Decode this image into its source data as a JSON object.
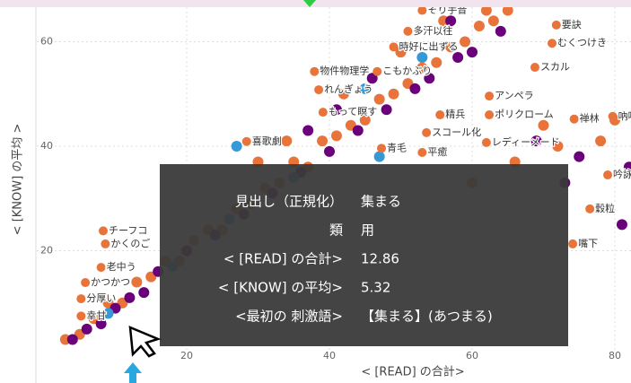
{
  "chart": {
    "type": "scatter",
    "x_label": "< [READ] の合計>",
    "y_label": "< [KNOW] の平均 >",
    "xlim": [
      0,
      82
    ],
    "ylim": [
      0,
      68
    ],
    "xticks": [
      20,
      40,
      60,
      80
    ],
    "yticks": [
      20,
      40,
      60
    ],
    "grid": true,
    "series": [
      {
        "color": "#e8743b",
        "points": [
          [
            3,
            3
          ],
          [
            5,
            4
          ],
          [
            7,
            7
          ],
          [
            9,
            10
          ],
          [
            11,
            10
          ],
          [
            13,
            14
          ],
          [
            15,
            15
          ],
          [
            17,
            18
          ],
          [
            19,
            18
          ],
          [
            21,
            22
          ],
          [
            23,
            24
          ],
          [
            25,
            24
          ],
          [
            27,
            28
          ],
          [
            29,
            29
          ],
          [
            31,
            32
          ],
          [
            33,
            33
          ],
          [
            35,
            37
          ],
          [
            37,
            36
          ],
          [
            39,
            41
          ],
          [
            41,
            42
          ],
          [
            43,
            44
          ],
          [
            45,
            45
          ],
          [
            47,
            49
          ],
          [
            49,
            50
          ],
          [
            51,
            52
          ],
          [
            53,
            55
          ],
          [
            55,
            56
          ],
          [
            57,
            59
          ],
          [
            59,
            60
          ],
          [
            61,
            63
          ],
          [
            63,
            64
          ],
          [
            65,
            66
          ],
          [
            30,
            37
          ],
          [
            34,
            41
          ],
          [
            42,
            50
          ],
          [
            50,
            58
          ],
          [
            56,
            64
          ],
          [
            70,
            44
          ],
          [
            72,
            40
          ],
          [
            78,
            41
          ],
          [
            66,
            37
          ],
          [
            60,
            33
          ],
          [
            80,
            45
          ],
          [
            62,
            66
          ]
        ]
      },
      {
        "color": "#6b007b",
        "points": [
          [
            4,
            3
          ],
          [
            6,
            5
          ],
          [
            8,
            6
          ],
          [
            10,
            9
          ],
          [
            12,
            11
          ],
          [
            14,
            12
          ],
          [
            16,
            16
          ],
          [
            20,
            20
          ],
          [
            24,
            23
          ],
          [
            28,
            27
          ],
          [
            32,
            31
          ],
          [
            36,
            35
          ],
          [
            40,
            39
          ],
          [
            44,
            43
          ],
          [
            48,
            47
          ],
          [
            52,
            51
          ],
          [
            54,
            53
          ],
          [
            58,
            57
          ],
          [
            60,
            58
          ],
          [
            64,
            62
          ],
          [
            37,
            43
          ],
          [
            41,
            47
          ],
          [
            46,
            53
          ],
          [
            57,
            64
          ],
          [
            69,
            41
          ],
          [
            75,
            38
          ],
          [
            81,
            25
          ],
          [
            82,
            36
          ],
          [
            73,
            33
          ]
        ]
      },
      {
        "color": "#3599d6",
        "points": [
          [
            9,
            8
          ],
          [
            18,
            17
          ],
          [
            26,
            26
          ],
          [
            35,
            34
          ],
          [
            45,
            51
          ],
          [
            53,
            57
          ],
          [
            27,
            40
          ],
          [
            47,
            38
          ]
        ]
      }
    ],
    "labels": [
      {
        "text": "そり手音",
        "x": 53,
        "y": 66
      },
      {
        "text": "多汗以往",
        "x": 51,
        "y": 62
      },
      {
        "text": "時好に出ずる",
        "x": 49,
        "y": 59
      },
      {
        "text": "物件物理学",
        "x": 37.9,
        "y": 54.3
      },
      {
        "text": "こもかぶり",
        "x": 46.7,
        "y": 54.3
      },
      {
        "text": "れんぎょう",
        "x": 38.5,
        "y": 50.8
      },
      {
        "text": "もって瞑す",
        "x": 39.1,
        "y": 46.5
      },
      {
        "text": "喜歌劇",
        "x": 28.4,
        "y": 40.9
      },
      {
        "text": "精兵",
        "x": 55.5,
        "y": 46
      },
      {
        "text": "ポリクローム",
        "x": 62.4,
        "y": 46
      },
      {
        "text": "アンペラ",
        "x": 62.4,
        "y": 49.6
      },
      {
        "text": "スカル",
        "x": 68.8,
        "y": 55.1
      },
      {
        "text": "要訣",
        "x": 71.8,
        "y": 63.2
      },
      {
        "text": "むくつけき",
        "x": 71.2,
        "y": 59.7
      },
      {
        "text": "スコール化",
        "x": 53.6,
        "y": 42.6
      },
      {
        "text": "青毛",
        "x": 47.3,
        "y": 39.6
      },
      {
        "text": "平癒",
        "x": 53,
        "y": 38.8
      },
      {
        "text": "レディーメード",
        "x": 62,
        "y": 40.7
      },
      {
        "text": "禅林",
        "x": 74.3,
        "y": 45.2
      },
      {
        "text": "吶喊",
        "x": 79.7,
        "y": 45.7
      },
      {
        "text": "吟詠",
        "x": 79,
        "y": 34.5
      },
      {
        "text": "穀粒",
        "x": 76.5,
        "y": 28
      },
      {
        "text": "嘴下",
        "x": 74.1,
        "y": 21.3
      },
      {
        "text": "チーフコ",
        "x": 8.3,
        "y": 23.8
      },
      {
        "text": "かくのご",
        "x": 8.6,
        "y": 21.3
      },
      {
        "text": "老中う",
        "x": 8,
        "y": 16.8
      },
      {
        "text": "かつかつ",
        "x": 5.8,
        "y": 13.9
      },
      {
        "text": "分厚い",
        "x": 5.2,
        "y": 10.8
      },
      {
        "text": "幸甘",
        "x": 5.2,
        "y": 7.5
      }
    ]
  },
  "tooltip": {
    "rows": [
      {
        "key": "見出し（正規化）",
        "value": "集まる"
      },
      {
        "key": "類",
        "value": "用"
      },
      {
        "key": "< [READ] の合計>",
        "value": "12.86"
      },
      {
        "key": "< [KNOW] の平均>",
        "value": "5.32"
      },
      {
        "key": "<最初の 刺激語>",
        "value": "【集まる】(あつまる)"
      }
    ]
  }
}
